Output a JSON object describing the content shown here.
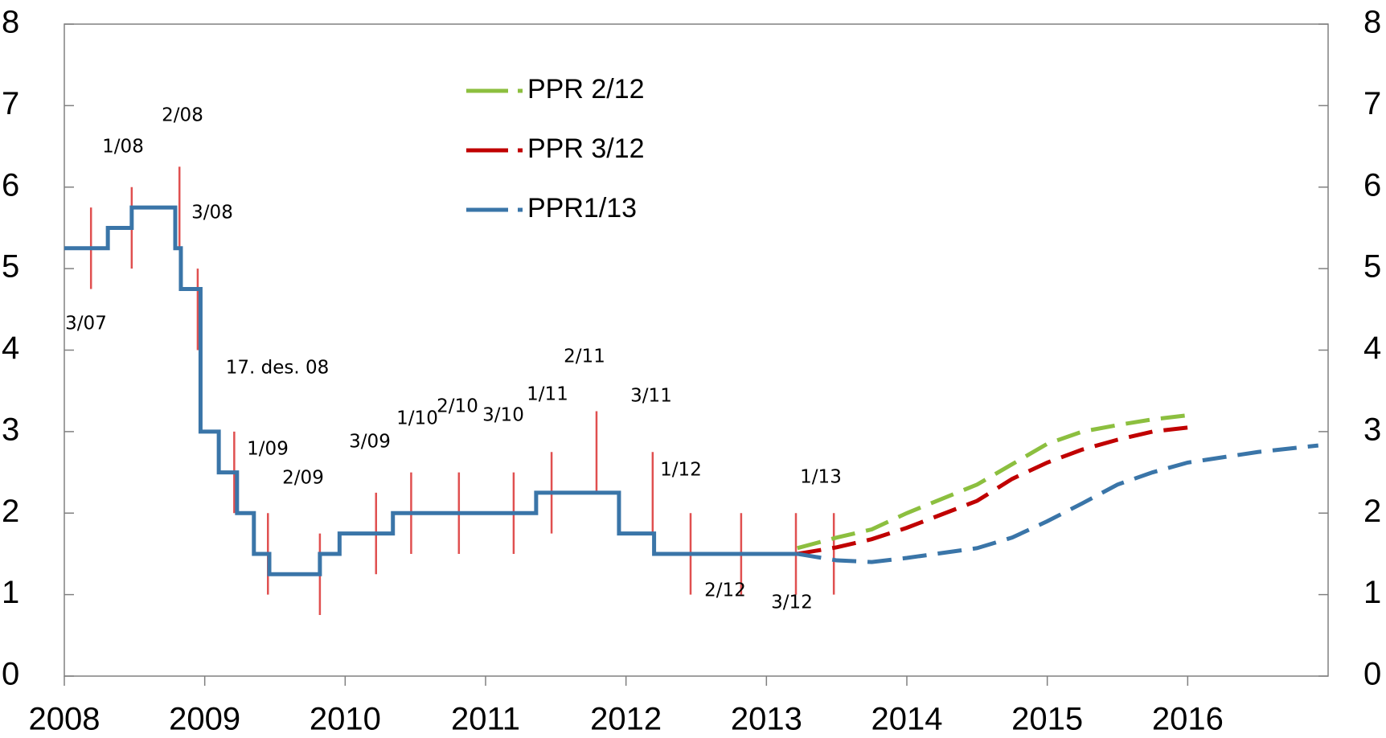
{
  "chart_data": {
    "type": "line",
    "xlim": [
      2008,
      2017
    ],
    "xticks": [
      2008,
      2009,
      2010,
      2011,
      2012,
      2013,
      2014,
      2015,
      2016
    ],
    "ylim": [
      0,
      8
    ],
    "yticks": [
      0,
      1,
      2,
      3,
      4,
      5,
      6,
      7,
      8
    ],
    "y2lim": [
      0,
      8
    ],
    "y2ticks": [
      0,
      1,
      2,
      3,
      4,
      5,
      6,
      7,
      8
    ],
    "series": [
      {
        "color": "#3a75a8",
        "dashed": false,
        "x": [
          2008,
          2008.31,
          2008.31,
          2008.48,
          2008.48,
          2008.79,
          2008.79,
          2008.83,
          2008.83,
          2008.97,
          2008.97,
          2009.1,
          2009.1,
          2009.23,
          2009.23,
          2009.35,
          2009.35,
          2009.46,
          2009.46,
          2009.82,
          2009.82,
          2009.96,
          2009.96,
          2010.34,
          2010.34,
          2011.36,
          2011.36,
          2011.95,
          2011.95,
          2012.2,
          2012.2,
          2013.22
        ],
        "values": [
          5.25,
          5.25,
          5.5,
          5.5,
          5.75,
          5.75,
          5.25,
          5.25,
          4.75,
          4.75,
          3.0,
          3.0,
          2.5,
          2.5,
          2.0,
          2.0,
          1.5,
          1.5,
          1.25,
          1.25,
          1.5,
          1.5,
          1.75,
          1.75,
          2.0,
          2.0,
          2.25,
          2.25,
          1.75,
          1.75,
          1.5,
          1.5
        ]
      },
      {
        "name": "PPR 2/12",
        "color": "#8cbf3f",
        "dashed": true,
        "x": [
          2013.22,
          2013.5,
          2013.75,
          2014,
          2014.5,
          2014.75,
          2015,
          2015.25,
          2015.5,
          2015.75,
          2016
        ],
        "values": [
          1.57,
          1.7,
          1.8,
          2.0,
          2.35,
          2.6,
          2.85,
          3.0,
          3.08,
          3.15,
          3.2
        ]
      },
      {
        "name": "PPR 3/12",
        "color": "#c00000",
        "dashed": true,
        "x": [
          2013.22,
          2013.5,
          2013.75,
          2014,
          2014.5,
          2014.75,
          2015,
          2015.25,
          2015.5,
          2015.75,
          2016
        ],
        "values": [
          1.5,
          1.58,
          1.68,
          1.82,
          2.15,
          2.42,
          2.62,
          2.78,
          2.9,
          3.0,
          3.05
        ]
      },
      {
        "name": "PPR1/13",
        "color": "#3a75a8",
        "dashed": true,
        "x": [
          2013.22,
          2013.5,
          2013.75,
          2014,
          2014.5,
          2014.75,
          2015,
          2015.25,
          2015.5,
          2015.75,
          2016,
          2016.5,
          2016.93
        ],
        "values": [
          1.5,
          1.42,
          1.4,
          1.45,
          1.57,
          1.7,
          1.9,
          2.12,
          2.35,
          2.5,
          2.62,
          2.75,
          2.83
        ]
      }
    ],
    "ranges": {
      "color": "#e05050",
      "x": [
        2008.19,
        2008.48,
        2008.82,
        2008.95,
        2009.21,
        2009.45,
        2009.82,
        2010.22,
        2010.47,
        2010.81,
        2011.2,
        2011.47,
        2011.79,
        2012.19,
        2012.46,
        2012.82,
        2013.21,
        2013.48
      ],
      "low": [
        4.75,
        5.0,
        5.25,
        4.0,
        2.0,
        1.0,
        0.75,
        1.25,
        1.5,
        1.5,
        1.5,
        1.75,
        2.25,
        1.75,
        1.0,
        1.0,
        1.0,
        1.0
      ],
      "high": [
        5.75,
        6.0,
        6.25,
        5.0,
        3.0,
        2.0,
        1.75,
        2.25,
        2.5,
        2.5,
        2.5,
        2.75,
        3.25,
        2.75,
        2.0,
        2.0,
        2.0,
        2.0
      ]
    },
    "annotations": [
      "3/07",
      "1/08",
      "2/08",
      "3/08",
      "17. des. 08",
      "1/09",
      "2/09",
      "3/09",
      "1/10",
      "2/10",
      "3/10",
      "1/11",
      "2/11",
      "3/11",
      "1/12",
      "1/13",
      "2/12",
      "3/12"
    ]
  }
}
